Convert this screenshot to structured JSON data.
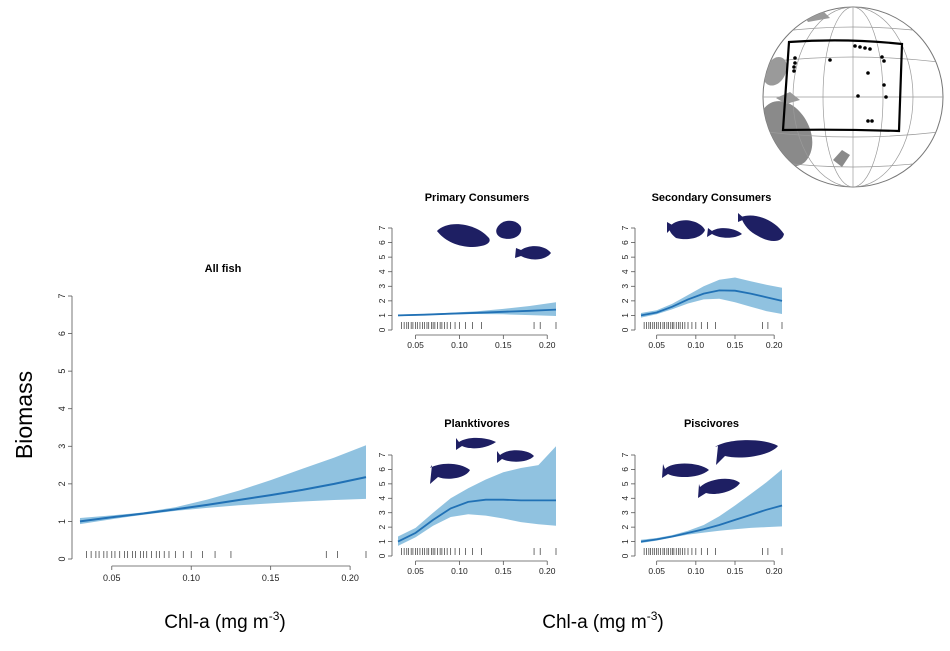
{
  "colors": {
    "line": "#2171b5",
    "band": "#6baed6",
    "fish": "#1e1f63",
    "axis": "#555555"
  },
  "labels": {
    "y_label": "Biomass",
    "x_label_main": "Chl-a (mg m",
    "x_label_sup": "-3",
    "x_label_close": ")"
  },
  "icons": [
    "globe-map-icon",
    "fish-icon"
  ],
  "chart_data": [
    {
      "type": "line",
      "title": "All fish",
      "xlabel": "Chl-a (mg m-3)",
      "ylabel": "Biomass",
      "xlim": [
        0.03,
        0.21
      ],
      "ylim": [
        0,
        7
      ],
      "x_ticks": [
        "0.05",
        "0.10",
        "0.15",
        "0.20"
      ],
      "y_ticks": [
        "0",
        "1",
        "2",
        "3",
        "4",
        "5",
        "6",
        "7"
      ],
      "series": [
        {
          "x": [
            0.03,
            0.05,
            0.07,
            0.09,
            0.11,
            0.13,
            0.15,
            0.17,
            0.19,
            0.21
          ],
          "y": [
            1.0,
            1.11,
            1.21,
            1.32,
            1.44,
            1.57,
            1.7,
            1.84,
            2.0,
            2.18
          ],
          "lower": [
            0.93,
            1.06,
            1.18,
            1.28,
            1.36,
            1.43,
            1.48,
            1.53,
            1.57,
            1.6
          ],
          "upper": [
            1.09,
            1.16,
            1.24,
            1.38,
            1.58,
            1.82,
            2.1,
            2.4,
            2.7,
            3.03
          ]
        }
      ],
      "rug": [
        0.034,
        0.037,
        0.04,
        0.042,
        0.045,
        0.047,
        0.05,
        0.052,
        0.055,
        0.058,
        0.06,
        0.063,
        0.065,
        0.068,
        0.07,
        0.072,
        0.075,
        0.078,
        0.08,
        0.083,
        0.086,
        0.09,
        0.095,
        0.1,
        0.107,
        0.115,
        0.125,
        0.185,
        0.192,
        0.21
      ]
    },
    {
      "type": "line",
      "title": "Primary Consumers",
      "xlim": [
        0.03,
        0.21
      ],
      "ylim": [
        0,
        7
      ],
      "x_ticks": [
        "0.05",
        "0.10",
        "0.15",
        "0.20"
      ],
      "y_ticks": [
        "0",
        "1",
        "2",
        "3",
        "4",
        "5",
        "6",
        "7"
      ],
      "series": [
        {
          "x": [
            0.03,
            0.06,
            0.09,
            0.12,
            0.15,
            0.18,
            0.21
          ],
          "y": [
            1.0,
            1.05,
            1.12,
            1.18,
            1.25,
            1.32,
            1.4
          ],
          "lower": [
            0.95,
            1.01,
            1.07,
            1.1,
            1.08,
            1.02,
            0.96
          ],
          "upper": [
            1.06,
            1.1,
            1.18,
            1.28,
            1.45,
            1.65,
            1.9
          ]
        }
      ],
      "rug": [
        0.034,
        0.037,
        0.04,
        0.042,
        0.045,
        0.047,
        0.05,
        0.052,
        0.055,
        0.058,
        0.06,
        0.063,
        0.065,
        0.068,
        0.07,
        0.072,
        0.075,
        0.078,
        0.08,
        0.083,
        0.086,
        0.09,
        0.095,
        0.1,
        0.107,
        0.115,
        0.125,
        0.185,
        0.192,
        0.21
      ]
    },
    {
      "type": "line",
      "title": "Secondary Consumers",
      "xlim": [
        0.03,
        0.21
      ],
      "ylim": [
        0,
        7
      ],
      "x_ticks": [
        "0.05",
        "0.10",
        "0.15",
        "0.20"
      ],
      "y_ticks": [
        "0",
        "1",
        "2",
        "3",
        "4",
        "5",
        "6",
        "7"
      ],
      "series": [
        {
          "x": [
            0.03,
            0.05,
            0.07,
            0.09,
            0.11,
            0.13,
            0.15,
            0.17,
            0.19,
            0.21
          ],
          "y": [
            1.0,
            1.2,
            1.6,
            2.1,
            2.5,
            2.72,
            2.7,
            2.5,
            2.25,
            2.0
          ],
          "lower": [
            0.85,
            1.08,
            1.42,
            1.82,
            2.1,
            2.15,
            1.9,
            1.6,
            1.3,
            1.1
          ],
          "upper": [
            1.17,
            1.35,
            1.8,
            2.4,
            3.0,
            3.45,
            3.6,
            3.35,
            3.1,
            2.9
          ]
        }
      ],
      "rug": [
        0.034,
        0.037,
        0.04,
        0.042,
        0.045,
        0.047,
        0.05,
        0.052,
        0.055,
        0.058,
        0.06,
        0.063,
        0.065,
        0.068,
        0.07,
        0.072,
        0.075,
        0.078,
        0.08,
        0.083,
        0.086,
        0.09,
        0.095,
        0.1,
        0.107,
        0.115,
        0.125,
        0.185,
        0.192,
        0.21
      ]
    },
    {
      "type": "line",
      "title": "Planktivores",
      "xlim": [
        0.03,
        0.21
      ],
      "ylim": [
        0,
        7
      ],
      "x_ticks": [
        "0.05",
        "0.10",
        "0.15",
        "0.20"
      ],
      "y_ticks": [
        "0",
        "1",
        "2",
        "3",
        "4",
        "5",
        "6",
        "7"
      ],
      "series": [
        {
          "x": [
            0.03,
            0.05,
            0.07,
            0.09,
            0.11,
            0.13,
            0.15,
            0.17,
            0.19,
            0.21
          ],
          "y": [
            1.0,
            1.6,
            2.5,
            3.3,
            3.75,
            3.9,
            3.9,
            3.85,
            3.85,
            3.85
          ],
          "lower": [
            0.7,
            1.3,
            2.1,
            2.7,
            2.9,
            2.8,
            2.6,
            2.35,
            2.2,
            2.1
          ],
          "upper": [
            1.35,
            1.95,
            3.0,
            4.0,
            4.7,
            5.3,
            5.8,
            6.1,
            6.3,
            7.6
          ]
        }
      ],
      "rug": [
        0.034,
        0.037,
        0.04,
        0.042,
        0.045,
        0.047,
        0.05,
        0.052,
        0.055,
        0.058,
        0.06,
        0.063,
        0.065,
        0.068,
        0.07,
        0.072,
        0.075,
        0.078,
        0.08,
        0.083,
        0.086,
        0.09,
        0.095,
        0.1,
        0.107,
        0.115,
        0.125,
        0.185,
        0.192,
        0.21
      ]
    },
    {
      "type": "line",
      "title": "Piscivores",
      "xlim": [
        0.03,
        0.21
      ],
      "ylim": [
        0,
        7
      ],
      "x_ticks": [
        "0.05",
        "0.10",
        "0.15",
        "0.20"
      ],
      "y_ticks": [
        "0",
        "1",
        "2",
        "3",
        "4",
        "5",
        "6",
        "7"
      ],
      "series": [
        {
          "x": [
            0.03,
            0.05,
            0.07,
            0.09,
            0.11,
            0.13,
            0.15,
            0.17,
            0.19,
            0.21
          ],
          "y": [
            1.0,
            1.15,
            1.35,
            1.6,
            1.85,
            2.15,
            2.5,
            2.85,
            3.2,
            3.5
          ],
          "lower": [
            0.9,
            1.07,
            1.28,
            1.48,
            1.62,
            1.75,
            1.85,
            1.95,
            2.0,
            2.05
          ],
          "upper": [
            1.12,
            1.25,
            1.45,
            1.75,
            2.15,
            2.75,
            3.5,
            4.3,
            5.1,
            6.0
          ]
        }
      ],
      "rug": [
        0.034,
        0.037,
        0.04,
        0.042,
        0.045,
        0.047,
        0.05,
        0.052,
        0.055,
        0.058,
        0.06,
        0.063,
        0.065,
        0.068,
        0.07,
        0.072,
        0.075,
        0.078,
        0.08,
        0.083,
        0.086,
        0.09,
        0.095,
        0.1,
        0.107,
        0.115,
        0.125,
        0.185,
        0.192,
        0.21
      ]
    }
  ]
}
